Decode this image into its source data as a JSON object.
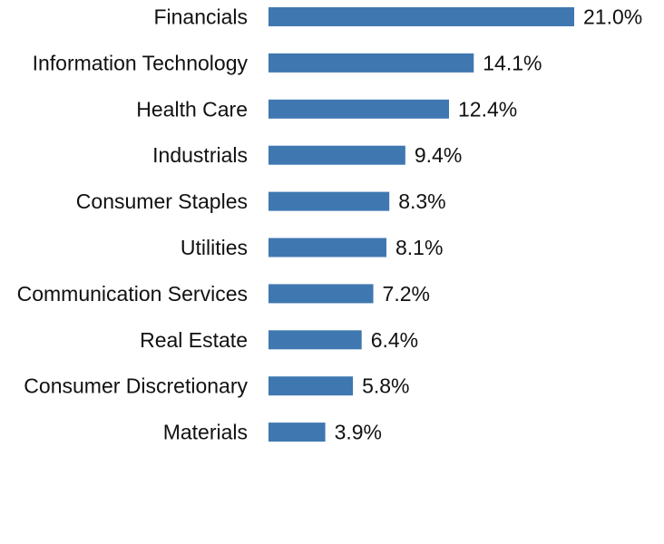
{
  "chart_data": {
    "type": "bar",
    "orientation": "horizontal",
    "title": "",
    "xlabel": "",
    "ylabel": "",
    "xlim": [
      0,
      21.0
    ],
    "grid": false,
    "bar_color": "#3f78b0",
    "categories": [
      "Financials",
      "Information Technology",
      "Health Care",
      "Industrials",
      "Consumer Staples",
      "Utilities",
      "Communication Services",
      "Real Estate",
      "Consumer Discretionary",
      "Materials"
    ],
    "values": [
      21.0,
      14.1,
      12.4,
      9.4,
      8.3,
      8.1,
      7.2,
      6.4,
      5.8,
      3.9
    ],
    "value_labels": [
      "21.0%",
      "14.1%",
      "12.4%",
      "9.4%",
      "8.3%",
      "8.1%",
      "7.2%",
      "6.4%",
      "5.8%",
      "3.9%"
    ]
  }
}
